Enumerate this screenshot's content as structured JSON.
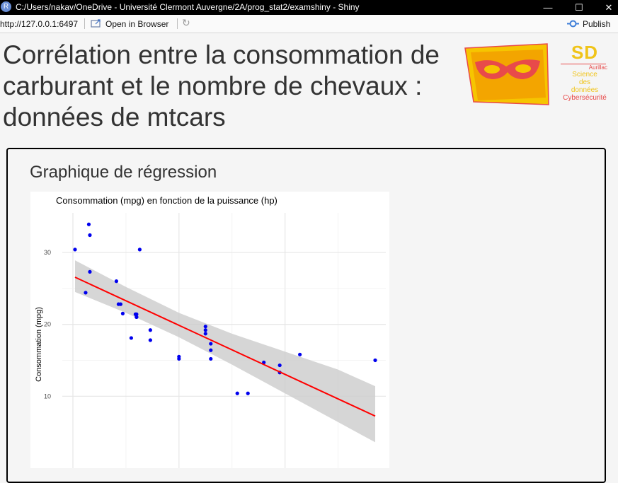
{
  "window": {
    "title": "C:/Users/nakav/OneDrive - Université Clermont Auvergne/2A/prog_stat2/examshiny - Shiny",
    "app_icon": "R",
    "icons": [
      "minimize-icon",
      "maximize-icon",
      "close-icon"
    ]
  },
  "toolbar": {
    "url": "http://127.0.0.1:6497",
    "open_in_browser": "Open in Browser",
    "publish": "Publish",
    "icons": [
      "open-browser-icon",
      "refresh-icon",
      "publish-icon"
    ]
  },
  "page": {
    "title": "Corrélation entre la consommation de carburant et le nombre de chevaux : données de mtcars"
  },
  "logo": {
    "mark": "SD",
    "place": "Aurillac",
    "line1": "Science",
    "line2": "des",
    "line3": "données",
    "line4": "Cybersécurité",
    "colors": {
      "yellow": "#f0c419",
      "red": "#e84a4a"
    }
  },
  "panel": {
    "title": "Graphique de régression"
  },
  "chart_data": {
    "type": "scatter",
    "title": "Consommation (mpg) en fonction de la puissance (hp)",
    "ylabel": "Consommation (mpg)",
    "xlabel": "",
    "yticks": [
      10,
      20,
      30
    ],
    "xlim": [
      40,
      345
    ],
    "ylim": [
      0,
      35.5
    ],
    "grid": true,
    "point_color": "#0000ee",
    "line_color": "#ff0000",
    "band_color": "#cccccc",
    "points": [
      {
        "x": 110,
        "y": 21.0
      },
      {
        "x": 110,
        "y": 21.0
      },
      {
        "x": 93,
        "y": 22.8
      },
      {
        "x": 110,
        "y": 21.4
      },
      {
        "x": 175,
        "y": 18.7
      },
      {
        "x": 105,
        "y": 18.1
      },
      {
        "x": 245,
        "y": 14.3
      },
      {
        "x": 62,
        "y": 24.4
      },
      {
        "x": 95,
        "y": 22.8
      },
      {
        "x": 123,
        "y": 19.2
      },
      {
        "x": 123,
        "y": 17.8
      },
      {
        "x": 180,
        "y": 16.4
      },
      {
        "x": 180,
        "y": 17.3
      },
      {
        "x": 180,
        "y": 15.2
      },
      {
        "x": 205,
        "y": 10.4
      },
      {
        "x": 215,
        "y": 10.4
      },
      {
        "x": 230,
        "y": 14.7
      },
      {
        "x": 66,
        "y": 32.4
      },
      {
        "x": 52,
        "y": 30.4
      },
      {
        "x": 65,
        "y": 33.9
      },
      {
        "x": 97,
        "y": 21.5
      },
      {
        "x": 150,
        "y": 15.5
      },
      {
        "x": 150,
        "y": 15.2
      },
      {
        "x": 245,
        "y": 13.3
      },
      {
        "x": 175,
        "y": 19.2
      },
      {
        "x": 66,
        "y": 27.3
      },
      {
        "x": 91,
        "y": 26.0
      },
      {
        "x": 113,
        "y": 30.4
      },
      {
        "x": 264,
        "y": 15.8
      },
      {
        "x": 175,
        "y": 19.7
      },
      {
        "x": 335,
        "y": 15.0
      },
      {
        "x": 109,
        "y": 21.4
      }
    ],
    "regression": {
      "intercept": 30.0989,
      "slope": -0.06823,
      "x_range": [
        52,
        335
      ]
    },
    "band": {
      "x": [
        52,
        100,
        150,
        200,
        250,
        300,
        335
      ],
      "lower": [
        24.5,
        21.6,
        18.2,
        14.4,
        10.4,
        6.4,
        3.6
      ],
      "upper": [
        28.9,
        25.2,
        21.6,
        18.7,
        16.2,
        13.7,
        11.4
      ]
    }
  }
}
